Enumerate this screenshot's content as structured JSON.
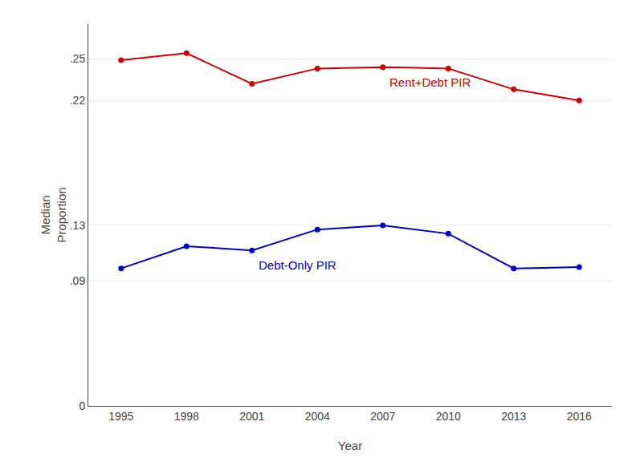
{
  "chart_data": {
    "type": "line",
    "x": [
      1995,
      1998,
      2001,
      2004,
      2007,
      2010,
      2013,
      2016
    ],
    "series": [
      {
        "name": "Rent+Debt PIR",
        "color": "#CC0000",
        "marker": "circle",
        "line_style": "solid",
        "values": [
          0.249,
          0.254,
          0.232,
          0.243,
          0.244,
          0.243,
          0.228,
          0.22
        ]
      },
      {
        "name": "Debt-Only PIR",
        "color": "#0000CC",
        "marker": "circle",
        "line_style": "solid",
        "values": [
          0.099,
          0.115,
          0.112,
          0.127,
          0.13,
          0.124,
          0.099,
          0.1
        ]
      }
    ],
    "xlabel": "Year",
    "ylabel": "Median\nProportion",
    "xlim": [
      1993.5,
      2017.5
    ],
    "xticks": [
      1995,
      1998,
      2001,
      2004,
      2007,
      2010,
      2013,
      2016
    ],
    "ylim": [
      0,
      0.275
    ],
    "yticks": [
      0,
      {
        "value": 0.09,
        "label": ".09"
      },
      {
        "value": 0.13,
        "label": ".13"
      },
      {
        "value": 0.22,
        "label": ".22"
      },
      {
        "value": 0.25,
        "label": ".25"
      }
    ],
    "grid": true
  }
}
